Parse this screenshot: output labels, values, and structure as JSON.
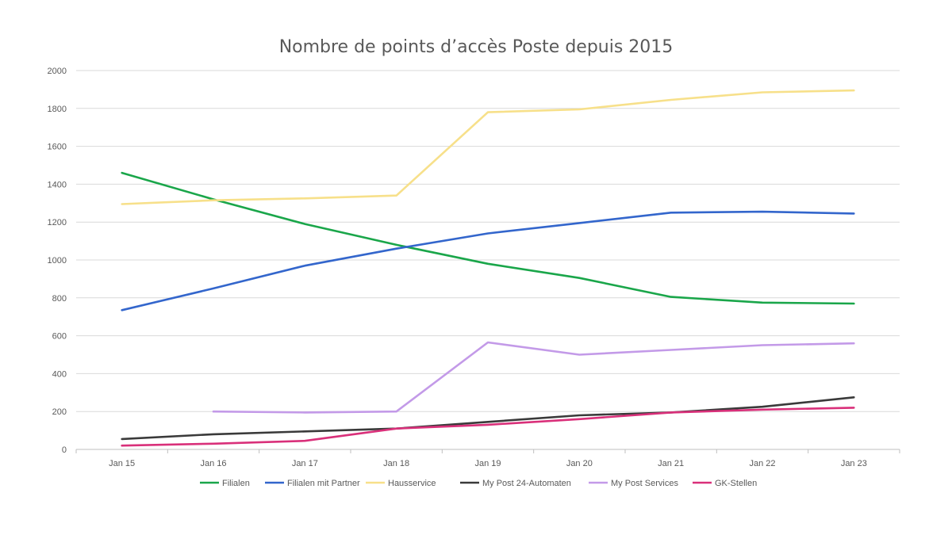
{
  "chart_data": {
    "type": "line",
    "title": "Nombre de points d’accès Poste depuis 2015",
    "xlabel": "",
    "ylabel": "",
    "categories": [
      "Jan 15",
      "Jan 16",
      "Jan 17",
      "Jan 18",
      "Jan 19",
      "Jan 20",
      "Jan 21",
      "Jan 22",
      "Jan 23"
    ],
    "ylim": [
      0,
      2000
    ],
    "yticks": [
      0,
      200,
      400,
      600,
      800,
      1000,
      1200,
      1400,
      1600,
      1800,
      2000
    ],
    "grid": true,
    "legend_position": "bottom",
    "series": [
      {
        "name": "Filialen",
        "color": "#1aa64a",
        "values": [
          1460,
          1320,
          1190,
          1080,
          980,
          905,
          805,
          775,
          770
        ]
      },
      {
        "name": "Filialen mit Partner",
        "color": "#3366cc",
        "values": [
          735,
          850,
          970,
          1060,
          1140,
          1195,
          1250,
          1255,
          1245
        ]
      },
      {
        "name": "Hausservice",
        "color": "#f7e08a",
        "values": [
          1295,
          1315,
          1325,
          1340,
          1780,
          1795,
          1845,
          1885,
          1895
        ]
      },
      {
        "name": "My Post 24-Automaten",
        "color": "#3a3a3a",
        "values": [
          55,
          80,
          95,
          110,
          145,
          180,
          195,
          225,
          275
        ]
      },
      {
        "name": "My Post Services",
        "color": "#c39ae8",
        "values": [
          null,
          200,
          195,
          200,
          565,
          500,
          525,
          550,
          560
        ]
      },
      {
        "name": "GK-Stellen",
        "color": "#d9307a",
        "values": [
          20,
          30,
          45,
          110,
          130,
          160,
          195,
          210,
          220
        ]
      }
    ]
  }
}
